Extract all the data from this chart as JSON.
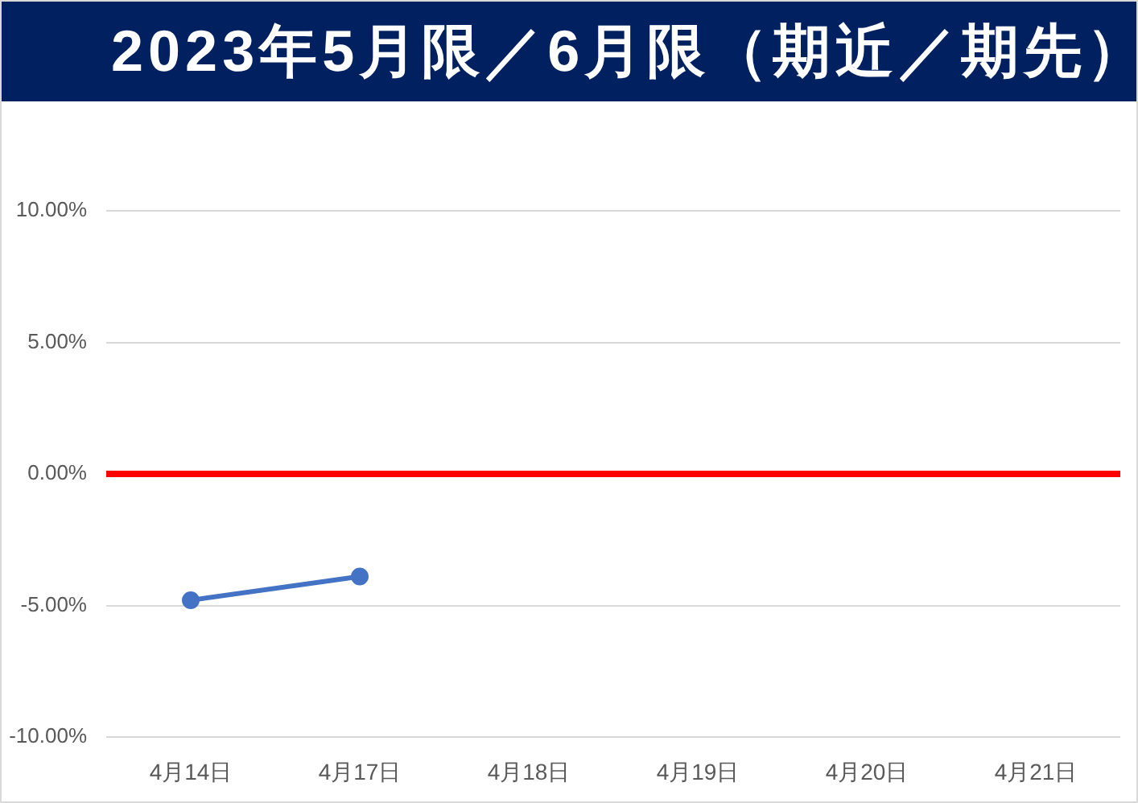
{
  "chart_data": {
    "type": "line",
    "title": "2023年5月限／6月限（期近／期先）",
    "categories": [
      "4月14日",
      "4月17日",
      "4月18日",
      "4月19日",
      "4月20日",
      "4月21日"
    ],
    "series": [
      {
        "color": "#4472c4",
        "values": [
          -4.8,
          -3.9,
          null,
          null,
          null,
          null
        ]
      }
    ],
    "ylim": [
      -10,
      10
    ],
    "yticks": [
      {
        "value": -10,
        "label": "-10.00%"
      },
      {
        "value": -5,
        "label": "-5.00%"
      },
      {
        "value": 0,
        "label": "0.00%"
      },
      {
        "value": 5,
        "label": "5.00%"
      },
      {
        "value": 10,
        "label": "10.00%"
      }
    ],
    "grid": "y",
    "legend": false,
    "marker": "circle",
    "line_style": "solid",
    "ref_lines": [
      {
        "axis": "y",
        "value": 0,
        "color": "#ff0000"
      }
    ]
  }
}
